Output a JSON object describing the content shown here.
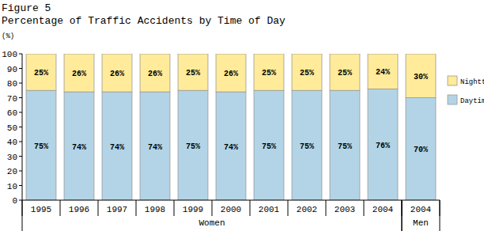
{
  "chart_data": {
    "type": "bar",
    "title": "Figure 5",
    "subtitle": "Percentage of Traffic Accidents by Time of Day",
    "y_label": "(%)",
    "stacked": true,
    "data_labels": true,
    "grid": false,
    "legend": "right",
    "categories": [
      "1995",
      "1996",
      "1997",
      "1998",
      "1999",
      "2000",
      "2001",
      "2002",
      "2003",
      "2004",
      "2004"
    ],
    "category_groups": [
      {
        "label": "Women",
        "span": [
          0,
          9
        ]
      },
      {
        "label": "Men",
        "span": [
          10,
          10
        ]
      }
    ],
    "series": [
      {
        "name": "Daytime",
        "color": "#b3d4e6",
        "values": [
          75,
          74,
          74,
          74,
          75,
          74,
          75,
          75,
          75,
          76,
          70
        ],
        "value_labels": [
          "75%",
          "74%",
          "74%",
          "74%",
          "75%",
          "74%",
          "75%",
          "75%",
          "75%",
          "76%",
          "70%"
        ]
      },
      {
        "name": "Nighttime",
        "color": "#ffeb99",
        "values": [
          25,
          26,
          26,
          26,
          25,
          26,
          25,
          25,
          25,
          24,
          30
        ],
        "value_labels": [
          "25%",
          "26%",
          "26%",
          "26%",
          "25%",
          "26%",
          "25%",
          "25%",
          "25%",
          "24%",
          "30%"
        ]
      }
    ],
    "ylim": [
      0,
      100
    ],
    "yticks": [
      0,
      10,
      20,
      30,
      40,
      50,
      60,
      70,
      80,
      90,
      100
    ]
  }
}
